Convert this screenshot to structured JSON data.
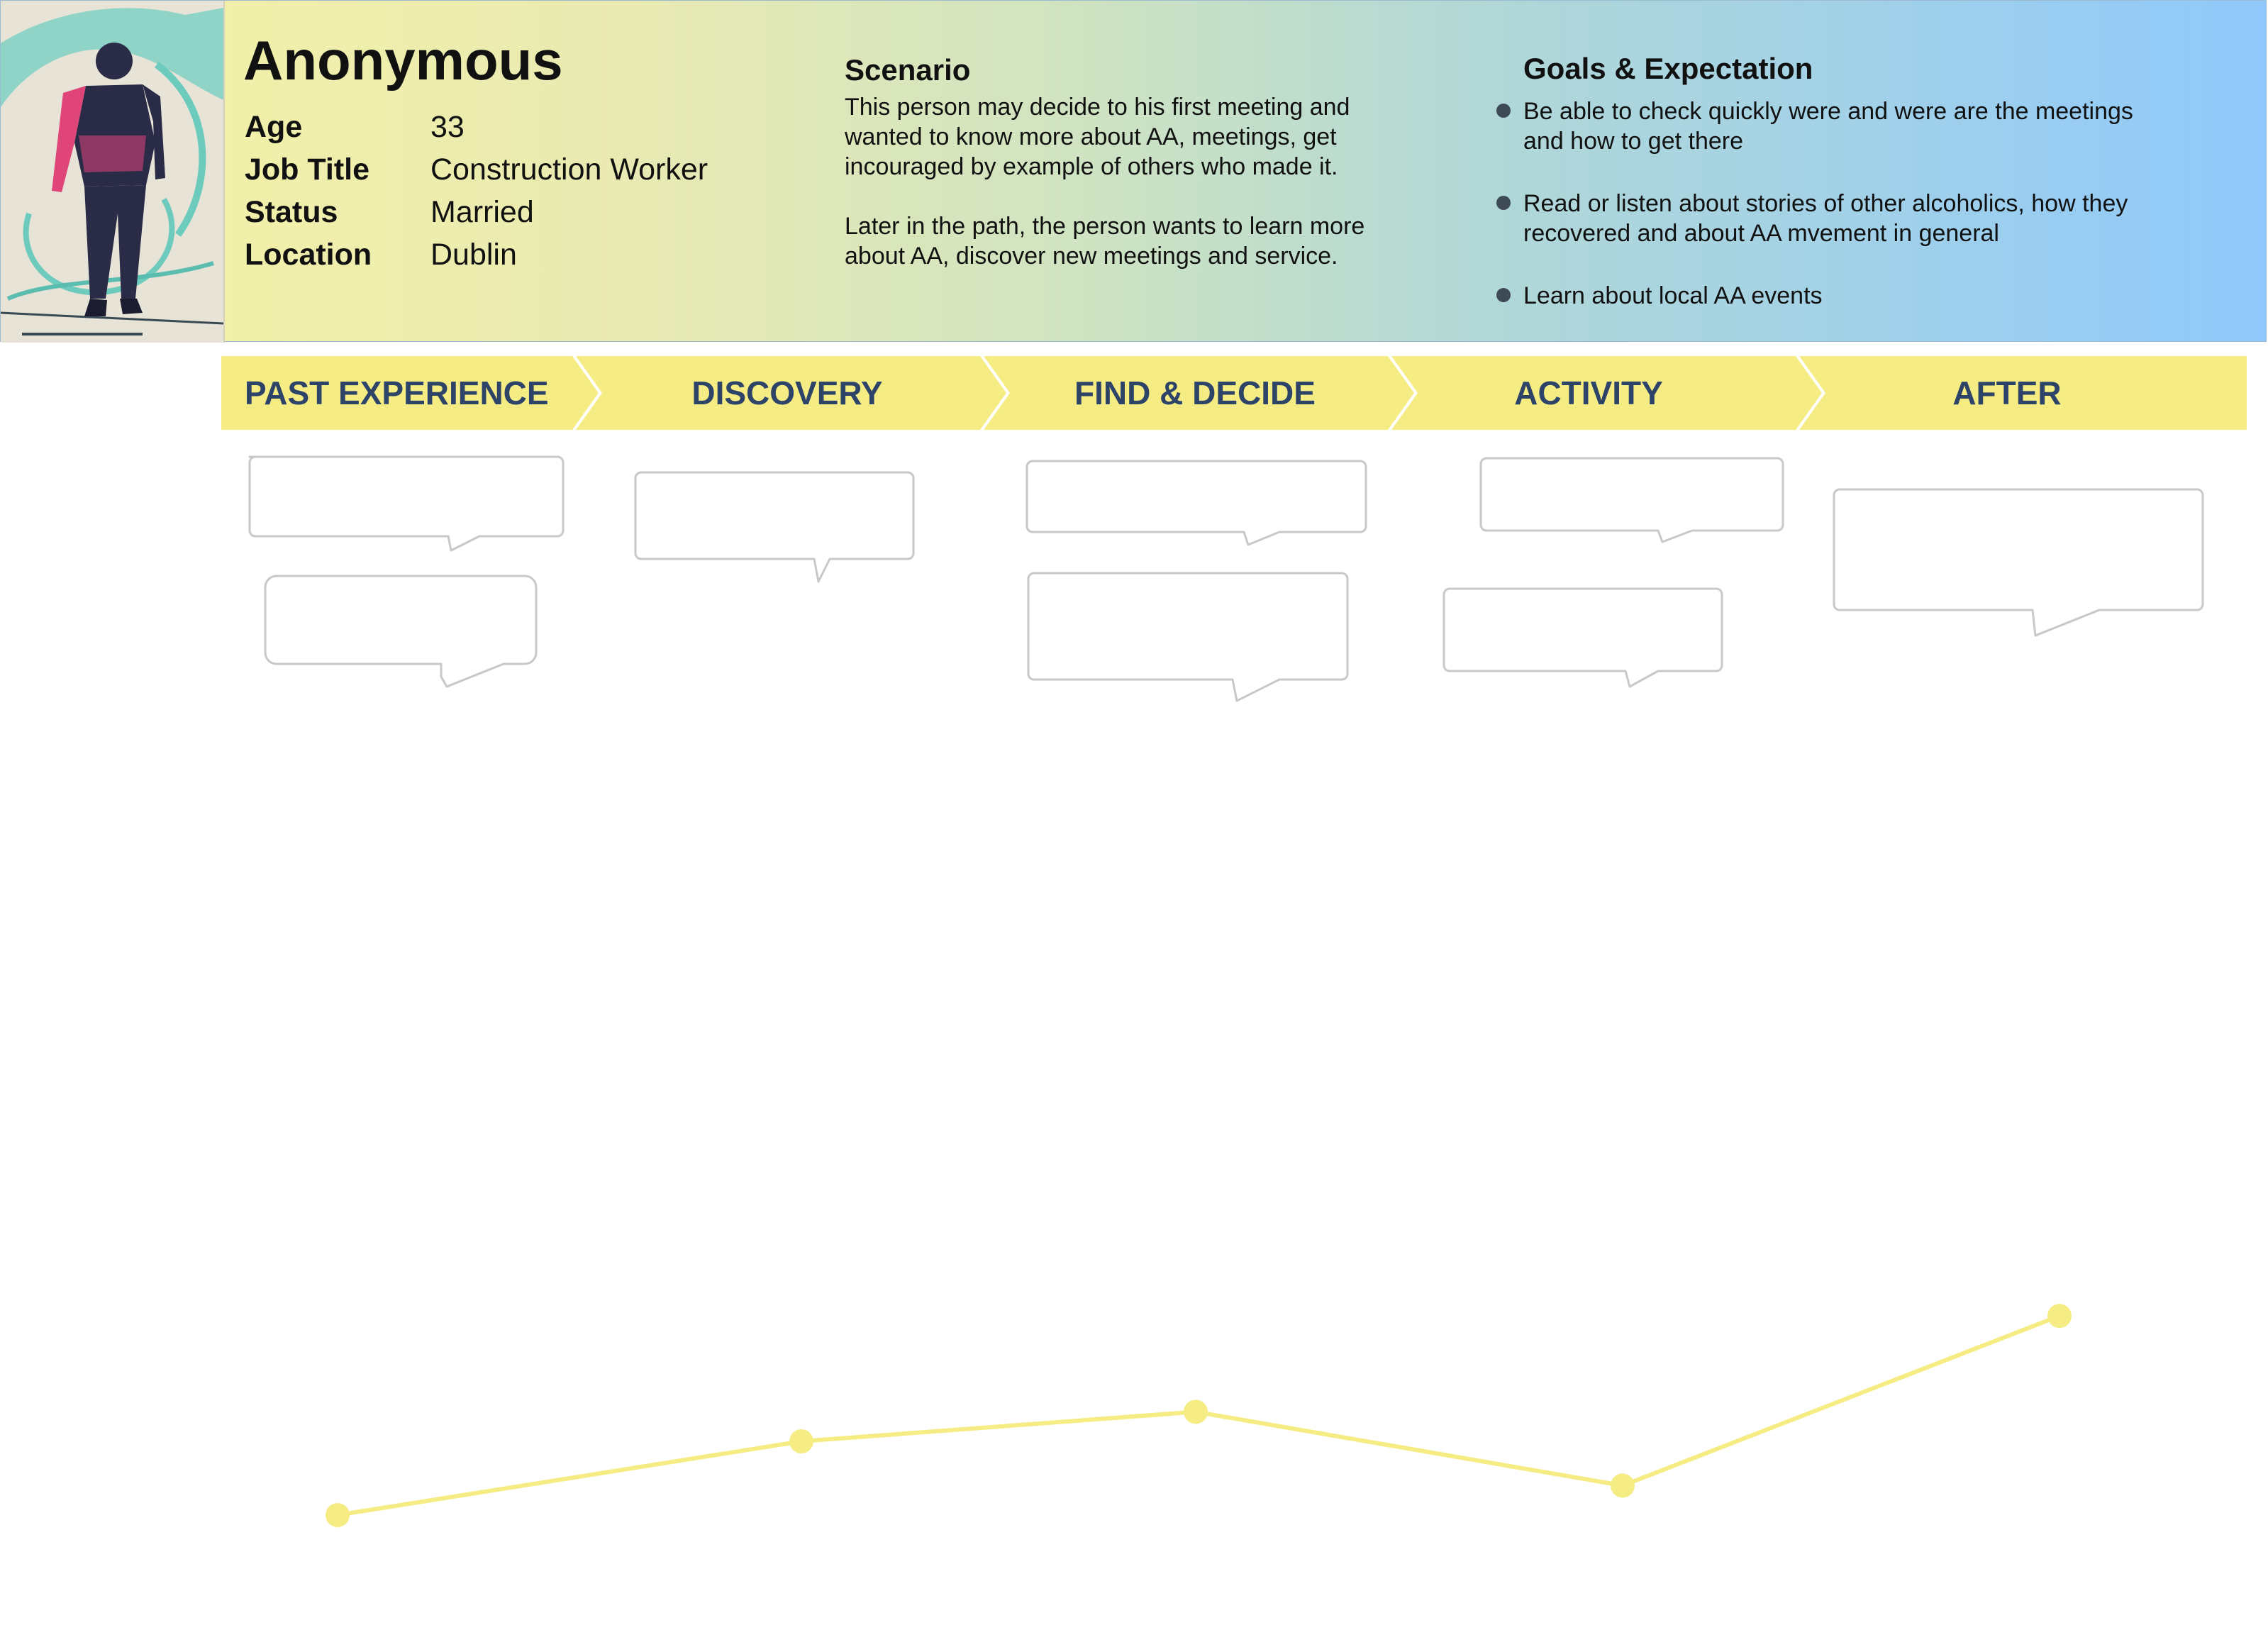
{
  "persona": {
    "name": "Anonymous",
    "fields": [
      {
        "key": "Age",
        "value": "33"
      },
      {
        "key": "Job Title",
        "value": "Construction Worker"
      },
      {
        "key": "Status",
        "value": "Married"
      },
      {
        "key": "Location",
        "value": "Dublin"
      }
    ]
  },
  "scenario": {
    "heading": "Scenario",
    "paragraphs": [
      "This person may decide to his first meeting and wanted to know more about AA, meetings, get incouraged by example of others who made it.",
      "Later in the path, the person wants to learn more about AA, discover new meetings and service."
    ]
  },
  "goals": {
    "heading": "Goals & Expectation",
    "items": [
      "Be able to check quickly were and were are the meetings and how to get there",
      "Read or listen about stories of other alcoholics, how they recovered and about AA mvement in general",
      "Learn about local AA events"
    ]
  },
  "stages": [
    "PAST EXPERIENCE",
    "DISCOVERY",
    "FIND & DECIDE",
    "ACTIVITY",
    "AFTER"
  ],
  "colors": {
    "stage_band": "#f6ec84",
    "stage_text": "#2d4468",
    "journey_line": "#f6ec84",
    "bubble_border": "#c8c8c8"
  },
  "chart_data": {
    "type": "line",
    "categories": [
      "PAST EXPERIENCE",
      "DISCOVERY",
      "FIND & DECIDE",
      "ACTIVITY",
      "AFTER"
    ],
    "values": [
      1.0,
      2.0,
      2.4,
      1.4,
      3.7
    ],
    "ylim": [
      0,
      5
    ],
    "grid": false,
    "title": "",
    "xlabel": "",
    "ylabel": ""
  }
}
